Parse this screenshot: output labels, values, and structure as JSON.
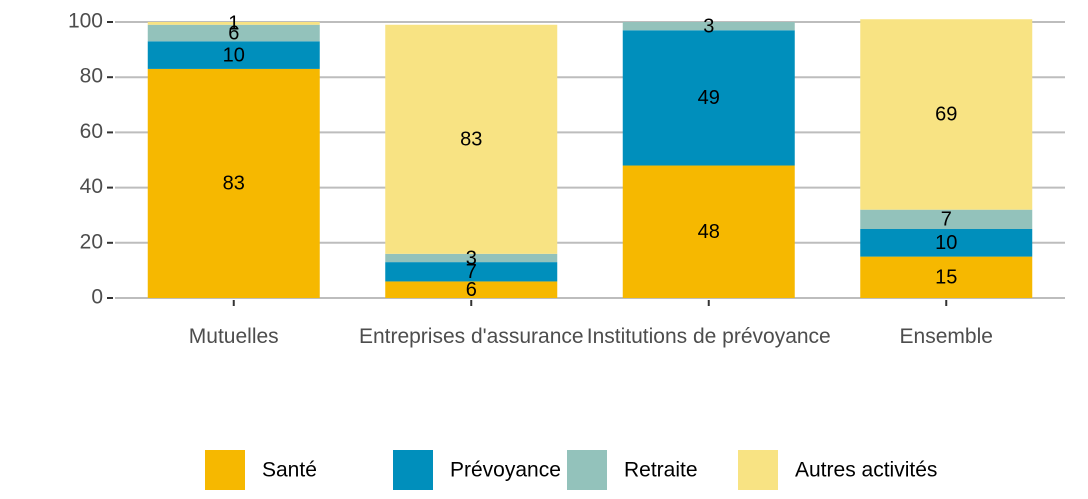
{
  "chart_data": {
    "type": "stacked_bar",
    "categories": [
      "Mutuelles",
      "Entreprises d'assurance",
      "Institutions de prévoyance",
      "Ensemble"
    ],
    "series": [
      {
        "name": "Santé",
        "color": "#f6b800",
        "values": [
          83,
          6,
          48,
          15
        ]
      },
      {
        "name": "Prévoyance",
        "color": "#008fbc",
        "values": [
          10,
          7,
          49,
          10
        ]
      },
      {
        "name": "Retraite",
        "color": "#93c2bb",
        "values": [
          6,
          3,
          3,
          7
        ]
      },
      {
        "name": "Autres activités",
        "color": "#f8e383",
        "values": [
          1,
          83,
          null,
          69
        ]
      }
    ],
    "ylim": [
      0,
      100
    ],
    "yticks": [
      0,
      20,
      40,
      60,
      80,
      100
    ],
    "grid": true,
    "legend": "bottom"
  }
}
